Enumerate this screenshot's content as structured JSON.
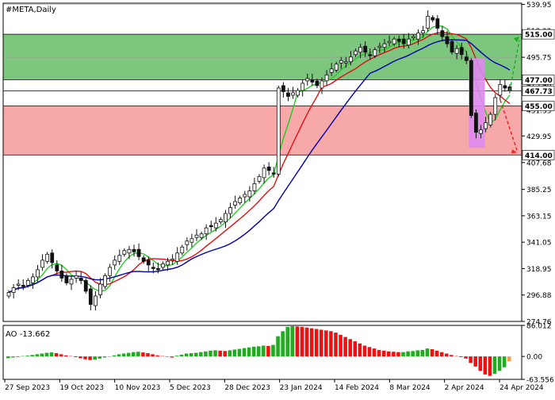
{
  "chart_data": [
    {
      "type": "candlestick",
      "symbol_label": "#META,Daily",
      "ylim": [
        274.76,
        541
      ],
      "y_ticks": [
        539.95,
        518.22,
        495.75,
        473.48,
        451.35,
        429.95,
        407.68,
        385.25,
        363.15,
        341.05,
        318.95,
        296.88,
        274.76
      ],
      "x_ticks": [
        "27 Sep 2023",
        "19 Oct 2023",
        "10 Nov 2023",
        "5 Dec 2023",
        "28 Dec 2023",
        "23 Jan 2024",
        "14 Feb 2024",
        "8 Mar 2024",
        "2 Apr 2024",
        "24 Apr 2024"
      ],
      "close_series": [
        299,
        303,
        306,
        304,
        309,
        312,
        318,
        326,
        331,
        324,
        317,
        311,
        307,
        310,
        313,
        309,
        300,
        289,
        296,
        306,
        313,
        320,
        326,
        330,
        334,
        335,
        333,
        329,
        325,
        322,
        319,
        318,
        323,
        325,
        327,
        332,
        337,
        342,
        344,
        347,
        348,
        353,
        354,
        357,
        360,
        365,
        370,
        375,
        378,
        381,
        384,
        390,
        396,
        403,
        401,
        398,
        470,
        467,
        463,
        466,
        468,
        474,
        478,
        475,
        472,
        476,
        481,
        486,
        490,
        493,
        492,
        496,
        501,
        504,
        500,
        497,
        502,
        505,
        507,
        509,
        511,
        509,
        507,
        511,
        513,
        516,
        518,
        530,
        527,
        520,
        513,
        507,
        500,
        503,
        498,
        493,
        447,
        433,
        435,
        441,
        448,
        462,
        473,
        470,
        467.73
      ],
      "bands": [
        {
          "from": 477.0,
          "to": 515.0,
          "color": "#7dc67d"
        },
        {
          "from": 414.0,
          "to": 455.0,
          "color": "#f7a8a8"
        }
      ],
      "levels": [
        {
          "value": 539.95,
          "label": "539.95",
          "highlight": false
        },
        {
          "value": 515.0,
          "label": "515.00",
          "highlight": true
        },
        {
          "value": 495.75,
          "label": "495.75",
          "highlight": false
        },
        {
          "value": 477.0,
          "label": "477.00",
          "highlight": true
        },
        {
          "value": 467.73,
          "label": "467.73",
          "highlight": true
        },
        {
          "value": 455.0,
          "label": "455.00",
          "highlight": true
        },
        {
          "value": 414.0,
          "label": "414.00",
          "highlight": true
        }
      ],
      "series": [
        {
          "color": "#22cc22",
          "period": 5
        },
        {
          "color": "#dd1111",
          "period": 10
        },
        {
          "color": "#0000aa",
          "period": 20
        }
      ],
      "colors": {
        "up": "#111111",
        "down": "#111111",
        "marker": "#dd88ee",
        "arrow_up": "#22aa22",
        "arrow_down": "#ee2222"
      }
    },
    {
      "type": "bar",
      "title": "AO -13.662",
      "ylim": [
        -63.556,
        86.012
      ],
      "y_ticks": [
        86.012,
        0.0,
        -63.556
      ],
      "values": [
        -5,
        -3,
        -2,
        1,
        2,
        4,
        6,
        8,
        10,
        11,
        9,
        6,
        3,
        1,
        -2,
        -5,
        -8,
        -10,
        -9,
        -6,
        -3,
        0,
        3,
        6,
        8,
        10,
        12,
        13,
        11,
        9,
        6,
        3,
        1,
        -1,
        -3,
        2,
        5,
        8,
        9,
        10,
        12,
        14,
        16,
        17,
        16,
        15,
        17,
        19,
        21,
        23,
        25,
        27,
        28,
        30,
        29,
        32,
        56,
        70,
        82,
        84,
        83,
        82,
        80,
        78,
        76,
        74,
        72,
        70,
        66,
        60,
        54,
        48,
        42,
        36,
        30,
        26,
        22,
        18,
        16,
        14,
        13,
        12,
        12,
        14,
        15,
        17,
        18,
        22,
        20,
        16,
        12,
        8,
        4,
        1,
        -2,
        -6,
        -18,
        -28,
        -40,
        -50,
        -54,
        -48,
        -40,
        -30,
        -13.662
      ],
      "colors": {
        "up": "#22aa22",
        "down": "#ee1111",
        "last": "#f0a050"
      }
    }
  ]
}
